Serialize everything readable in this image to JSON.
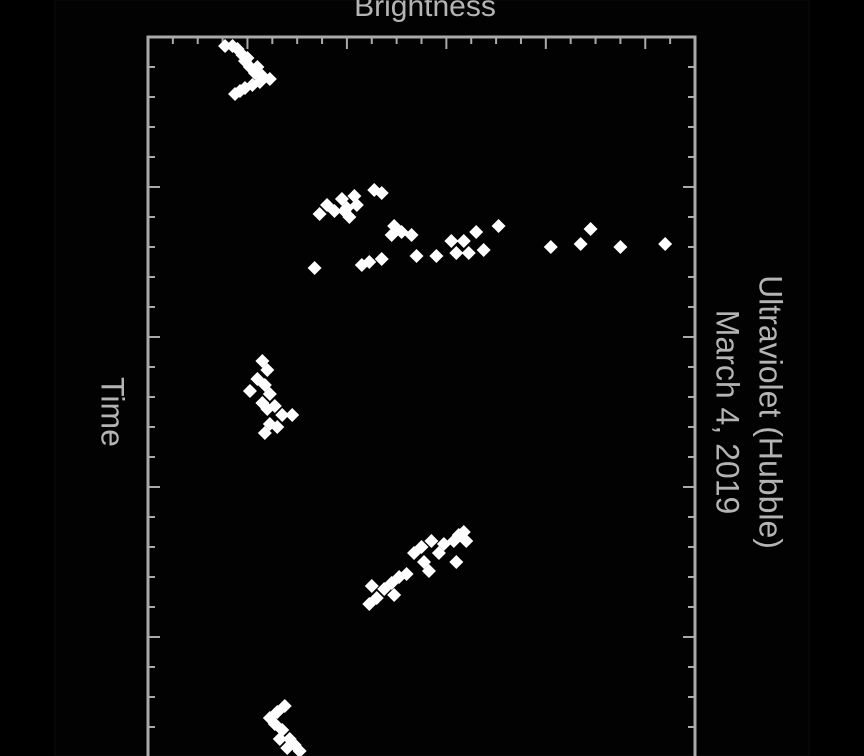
{
  "chart_data": {
    "type": "scatter",
    "title": "Ultraviolet (Hubble)",
    "subtitle": "March 4, 2019",
    "x_label": "Time",
    "y_label": "Brightness",
    "xlim": [
      0,
      24
    ],
    "ylim": [
      0,
      22
    ],
    "xticks": [
      0,
      1,
      2,
      3,
      4,
      5,
      6,
      7,
      8,
      9,
      10,
      11,
      12,
      13,
      14,
      15,
      16,
      17,
      18,
      19,
      20,
      21,
      22,
      23,
      24
    ],
    "yticks": [
      0,
      1,
      2,
      3,
      4,
      5,
      6,
      7,
      8,
      9,
      10,
      11,
      12,
      13,
      14,
      15,
      16,
      17,
      18,
      19,
      20,
      21,
      22
    ],
    "grid": false,
    "series": [
      {
        "color": "#ffffff",
        "x": [
          0.3,
          0.3,
          0.4,
          0.6,
          0.8,
          1.0,
          1.2,
          1.3,
          1.4,
          1.5,
          1.6,
          1.7,
          1.9,
          1.8,
          1.0,
          0.7,
          5.9,
          5.6,
          5.8,
          5.4,
          5.7,
          5.3,
          5.6,
          6.0,
          5.8,
          5.1,
          5.2,
          7.7,
          7.6,
          7.5,
          7.4,
          6.3,
          6.6,
          6.5,
          6.6,
          7.3,
          7.3,
          6.8,
          7.2,
          6.8,
          7.2,
          6.5,
          7.1,
          6.3,
          7.0,
          6.9,
          6.4,
          7.0,
          6.9,
          10.8,
          11.1,
          11.4,
          11.6,
          11.8,
          11.9,
          12.2,
          12.3,
          12.4,
          12.6,
          12.6,
          12.9,
          13.0,
          13.2,
          18.9,
          18.7,
          18.4,
          18.3,
          18.2,
          18.0,
          17.9,
          18.6,
          17.2,
          17.0,
          16.8,
          17.2,
          16.9,
          16.8,
          16.6,
          16.5,
          16.8,
          17.5,
          17.8,
          17.5,
          22.3,
          22.5,
          22.7,
          22.9,
          23.1,
          23.4,
          23.6,
          23.8,
          23.4,
          23.7
        ],
        "values": [
          3.1,
          3.4,
          3.6,
          3.8,
          3.9,
          4.1,
          4.3,
          4.6,
          4.9,
          4.5,
          4.2,
          3.9,
          3.5,
          3.7,
          4.4,
          4.0,
          6.9,
          7.2,
          7.5,
          7.8,
          8.0,
          8.3,
          8.4,
          8.1,
          7.9,
          9.1,
          9.4,
          6.7,
          8.6,
          8.9,
          9.4,
          9.9,
          9.8,
          10.2,
          10.6,
          10.8,
          11.6,
          12.2,
          12.4,
          12.7,
          12.9,
          13.2,
          13.5,
          14.1,
          16.2,
          17.4,
          17.8,
          19.0,
          20.8,
          4.6,
          4.8,
          4.4,
          4.7,
          4.1,
          4.9,
          4.6,
          5.1,
          4.8,
          5.4,
          5.8,
          4.9,
          5.2,
          4.7,
          8.9,
          9.2,
          9.5,
          9.0,
          9.8,
          10.1,
          10.4,
          9.9,
          10.7,
          11.0,
          11.4,
          11.7,
          11.9,
          12.3,
          12.5,
          12.7,
          12.8,
          12.4,
          11.3,
          11.1,
          5.5,
          5.2,
          4.9,
          5.1,
          5.4,
          5.7,
          5.9,
          6.1,
          5.3,
          5.6
        ]
      }
    ]
  }
}
